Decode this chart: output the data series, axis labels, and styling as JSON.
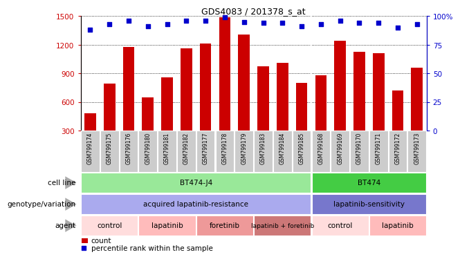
{
  "title": "GDS4083 / 201378_s_at",
  "samples": [
    "GSM799174",
    "GSM799175",
    "GSM799176",
    "GSM799180",
    "GSM799181",
    "GSM799182",
    "GSM799177",
    "GSM799178",
    "GSM799179",
    "GSM799183",
    "GSM799184",
    "GSM799185",
    "GSM799168",
    "GSM799169",
    "GSM799170",
    "GSM799171",
    "GSM799172",
    "GSM799173"
  ],
  "counts": [
    480,
    790,
    1175,
    645,
    860,
    1165,
    1215,
    1490,
    1305,
    975,
    1010,
    800,
    880,
    1240,
    1130,
    1115,
    720,
    960
  ],
  "percentile": [
    88,
    93,
    96,
    91,
    93,
    96,
    96,
    99,
    95,
    94,
    94,
    91,
    93,
    96,
    94,
    94,
    90,
    93
  ],
  "bar_color": "#cc0000",
  "dot_color": "#0000cc",
  "ymin": 300,
  "ymax": 1500,
  "yticks": [
    300,
    600,
    900,
    1200,
    1500
  ],
  "y2min": 0,
  "y2max": 100,
  "y2ticks": [
    0,
    25,
    50,
    75,
    100
  ],
  "y2tick_labels": [
    "0",
    "25",
    "50",
    "75",
    "100%"
  ],
  "cell_line_groups": [
    {
      "label": "BT474-J4",
      "start": 0,
      "end": 11,
      "color": "#99e899"
    },
    {
      "label": "BT474",
      "start": 12,
      "end": 17,
      "color": "#44cc44"
    }
  ],
  "genotype_groups": [
    {
      "label": "acquired lapatinib-resistance",
      "start": 0,
      "end": 11,
      "color": "#aaaaee"
    },
    {
      "label": "lapatinib-sensitivity",
      "start": 12,
      "end": 17,
      "color": "#7777cc"
    }
  ],
  "agent_groups": [
    {
      "label": "control",
      "start": 0,
      "end": 2,
      "color": "#ffdddd"
    },
    {
      "label": "lapatinib",
      "start": 3,
      "end": 5,
      "color": "#ffbbbb"
    },
    {
      "label": "foretinib",
      "start": 6,
      "end": 8,
      "color": "#ee9999"
    },
    {
      "label": "lapatinib + foretinib",
      "start": 9,
      "end": 11,
      "color": "#cc7777"
    },
    {
      "label": "control",
      "start": 12,
      "end": 14,
      "color": "#ffdddd"
    },
    {
      "label": "lapatinib",
      "start": 15,
      "end": 17,
      "color": "#ffbbbb"
    }
  ],
  "row_labels": [
    "cell line",
    "genotype/variation",
    "agent"
  ],
  "legend_count_color": "#cc0000",
  "legend_dot_color": "#0000cc",
  "sample_bg_color": "#cccccc",
  "grid_color": "#555555",
  "n_split": 12
}
